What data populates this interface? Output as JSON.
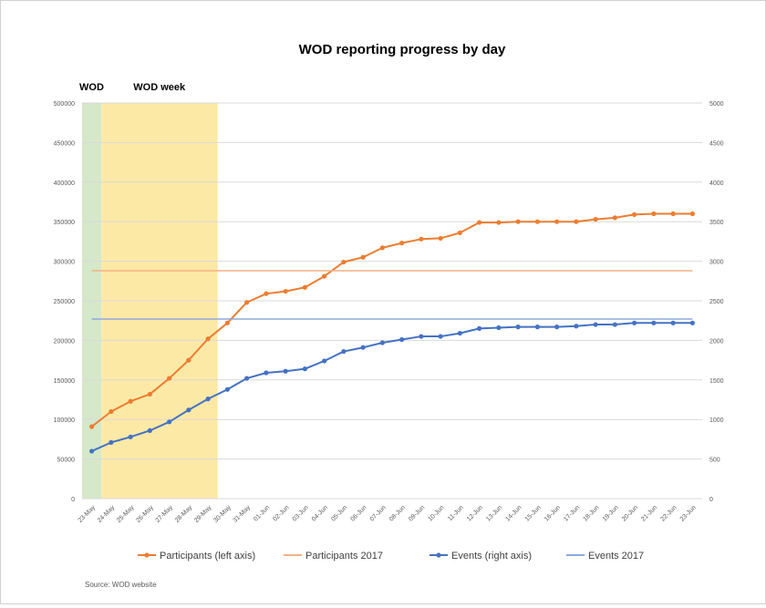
{
  "chart_data": {
    "type": "line",
    "title": "WOD reporting progress by day",
    "source": "Source:  WOD website",
    "annotations": [
      {
        "label": "WOD",
        "color": "#d5e8c9",
        "from": "23-May",
        "to": "23-May"
      },
      {
        "label": "WOD week",
        "color": "#fde9a6",
        "from": "24-May",
        "to": "29-May"
      }
    ],
    "categories": [
      "23-May",
      "24-May",
      "25-May",
      "26-May",
      "27-May",
      "28-May",
      "29-May",
      "30-May",
      "31-May",
      "01-Jun",
      "02-Jun",
      "03-Jun",
      "04-Jun",
      "05-Jun",
      "06-Jun",
      "07-Jun",
      "08-Jun",
      "09-Jun",
      "10-Jun",
      "11-Jun",
      "12-Jun",
      "13-Jun",
      "14-Jun",
      "15-Jun",
      "16-Jun",
      "17-Jun",
      "18-Jun",
      "19-Jun",
      "20-Jun",
      "21-Jun",
      "22-Jun",
      "23-Jun"
    ],
    "left_axis": {
      "ylim": [
        0,
        500000
      ],
      "ticks": [
        0,
        50000,
        100000,
        150000,
        200000,
        250000,
        300000,
        350000,
        400000,
        450000,
        500000
      ]
    },
    "right_axis": {
      "ylim": [
        0,
        5000
      ],
      "ticks": [
        0,
        500,
        1000,
        1500,
        2000,
        2500,
        3000,
        3500,
        4000,
        4500,
        5000
      ]
    },
    "grid": true,
    "legend_position": "bottom",
    "series": [
      {
        "name": "Participants (left axis)",
        "axis": "left",
        "color": "#ed7d31",
        "markers": true,
        "values": [
          91000,
          110000,
          123000,
          132000,
          152000,
          175000,
          202000,
          222000,
          248000,
          259000,
          262000,
          267000,
          281000,
          299000,
          305000,
          317000,
          323000,
          328000,
          329000,
          336000,
          349000,
          349000,
          350000,
          350000,
          350000,
          350000,
          353000,
          355000,
          359000,
          360000,
          360000,
          360000
        ]
      },
      {
        "name": "Participants 2017",
        "axis": "left",
        "color": "#f4b183",
        "markers": false,
        "constant": 288000
      },
      {
        "name": "Events (right axis)",
        "axis": "right",
        "color": "#4472c4",
        "markers": true,
        "values": [
          600,
          710,
          780,
          860,
          970,
          1120,
          1260,
          1380,
          1520,
          1590,
          1610,
          1640,
          1740,
          1860,
          1910,
          1970,
          2010,
          2050,
          2050,
          2090,
          2150,
          2160,
          2170,
          2170,
          2170,
          2180,
          2200,
          2200,
          2220,
          2220,
          2220,
          2220
        ]
      },
      {
        "name": "Events 2017",
        "axis": "right",
        "color": "#8faadc",
        "markers": false,
        "constant": 2270
      }
    ]
  }
}
